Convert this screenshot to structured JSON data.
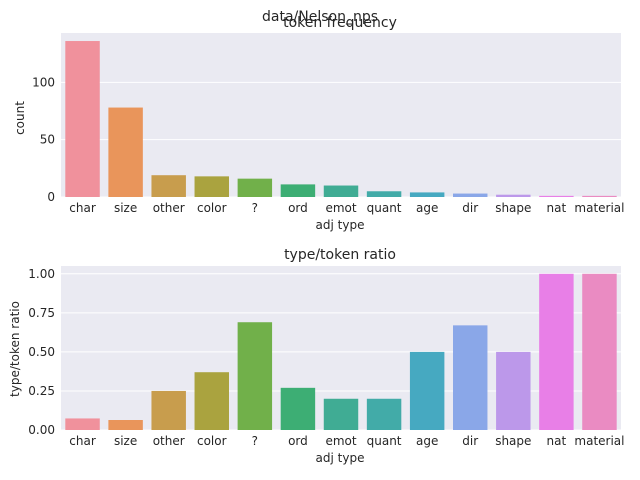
{
  "figure": {
    "suptitle": "data/Nelson_nps"
  },
  "chart_data": [
    {
      "type": "bar",
      "title": "token frequency",
      "xlabel": "adj type",
      "ylabel": "count",
      "categories": [
        "char",
        "size",
        "other",
        "color",
        "?",
        "ord",
        "emot",
        "quant",
        "age",
        "dir",
        "shape",
        "nat",
        "material"
      ],
      "values": [
        136,
        78,
        19,
        18,
        16,
        11,
        10,
        5,
        4,
        3,
        2,
        1,
        1
      ],
      "ylim": [
        0,
        143
      ],
      "yticks": [
        0,
        50,
        100
      ],
      "ytick_labels": [
        "0",
        "50",
        "100"
      ],
      "grid": true
    },
    {
      "type": "bar",
      "title": "type/token ratio",
      "xlabel": "adj type",
      "ylabel": "type/token ratio",
      "categories": [
        "char",
        "size",
        "other",
        "color",
        "?",
        "ord",
        "emot",
        "quant",
        "age",
        "dir",
        "shape",
        "nat",
        "material"
      ],
      "values": [
        0.074,
        0.064,
        0.25,
        0.37,
        0.69,
        0.27,
        0.2,
        0.2,
        0.5,
        0.67,
        0.5,
        1.0,
        1.0
      ],
      "ylim": [
        0,
        1.05
      ],
      "yticks": [
        0,
        0.25,
        0.5,
        0.75,
        1.0
      ],
      "ytick_labels": [
        "0.00",
        "0.25",
        "0.50",
        "0.75",
        "1.00"
      ],
      "grid": true
    }
  ],
  "colors": {
    "bars": [
      "#f0919c",
      "#e9955b",
      "#c89d4d",
      "#aaa33f",
      "#71b04a",
      "#3dae74",
      "#40ac94",
      "#42aba8",
      "#46a9c1",
      "#8aa7e8",
      "#bc98ea",
      "#e87fe7",
      "#ea8bc2"
    ],
    "panel_bg": "#eaeaf2",
    "grid": "#ffffff"
  }
}
